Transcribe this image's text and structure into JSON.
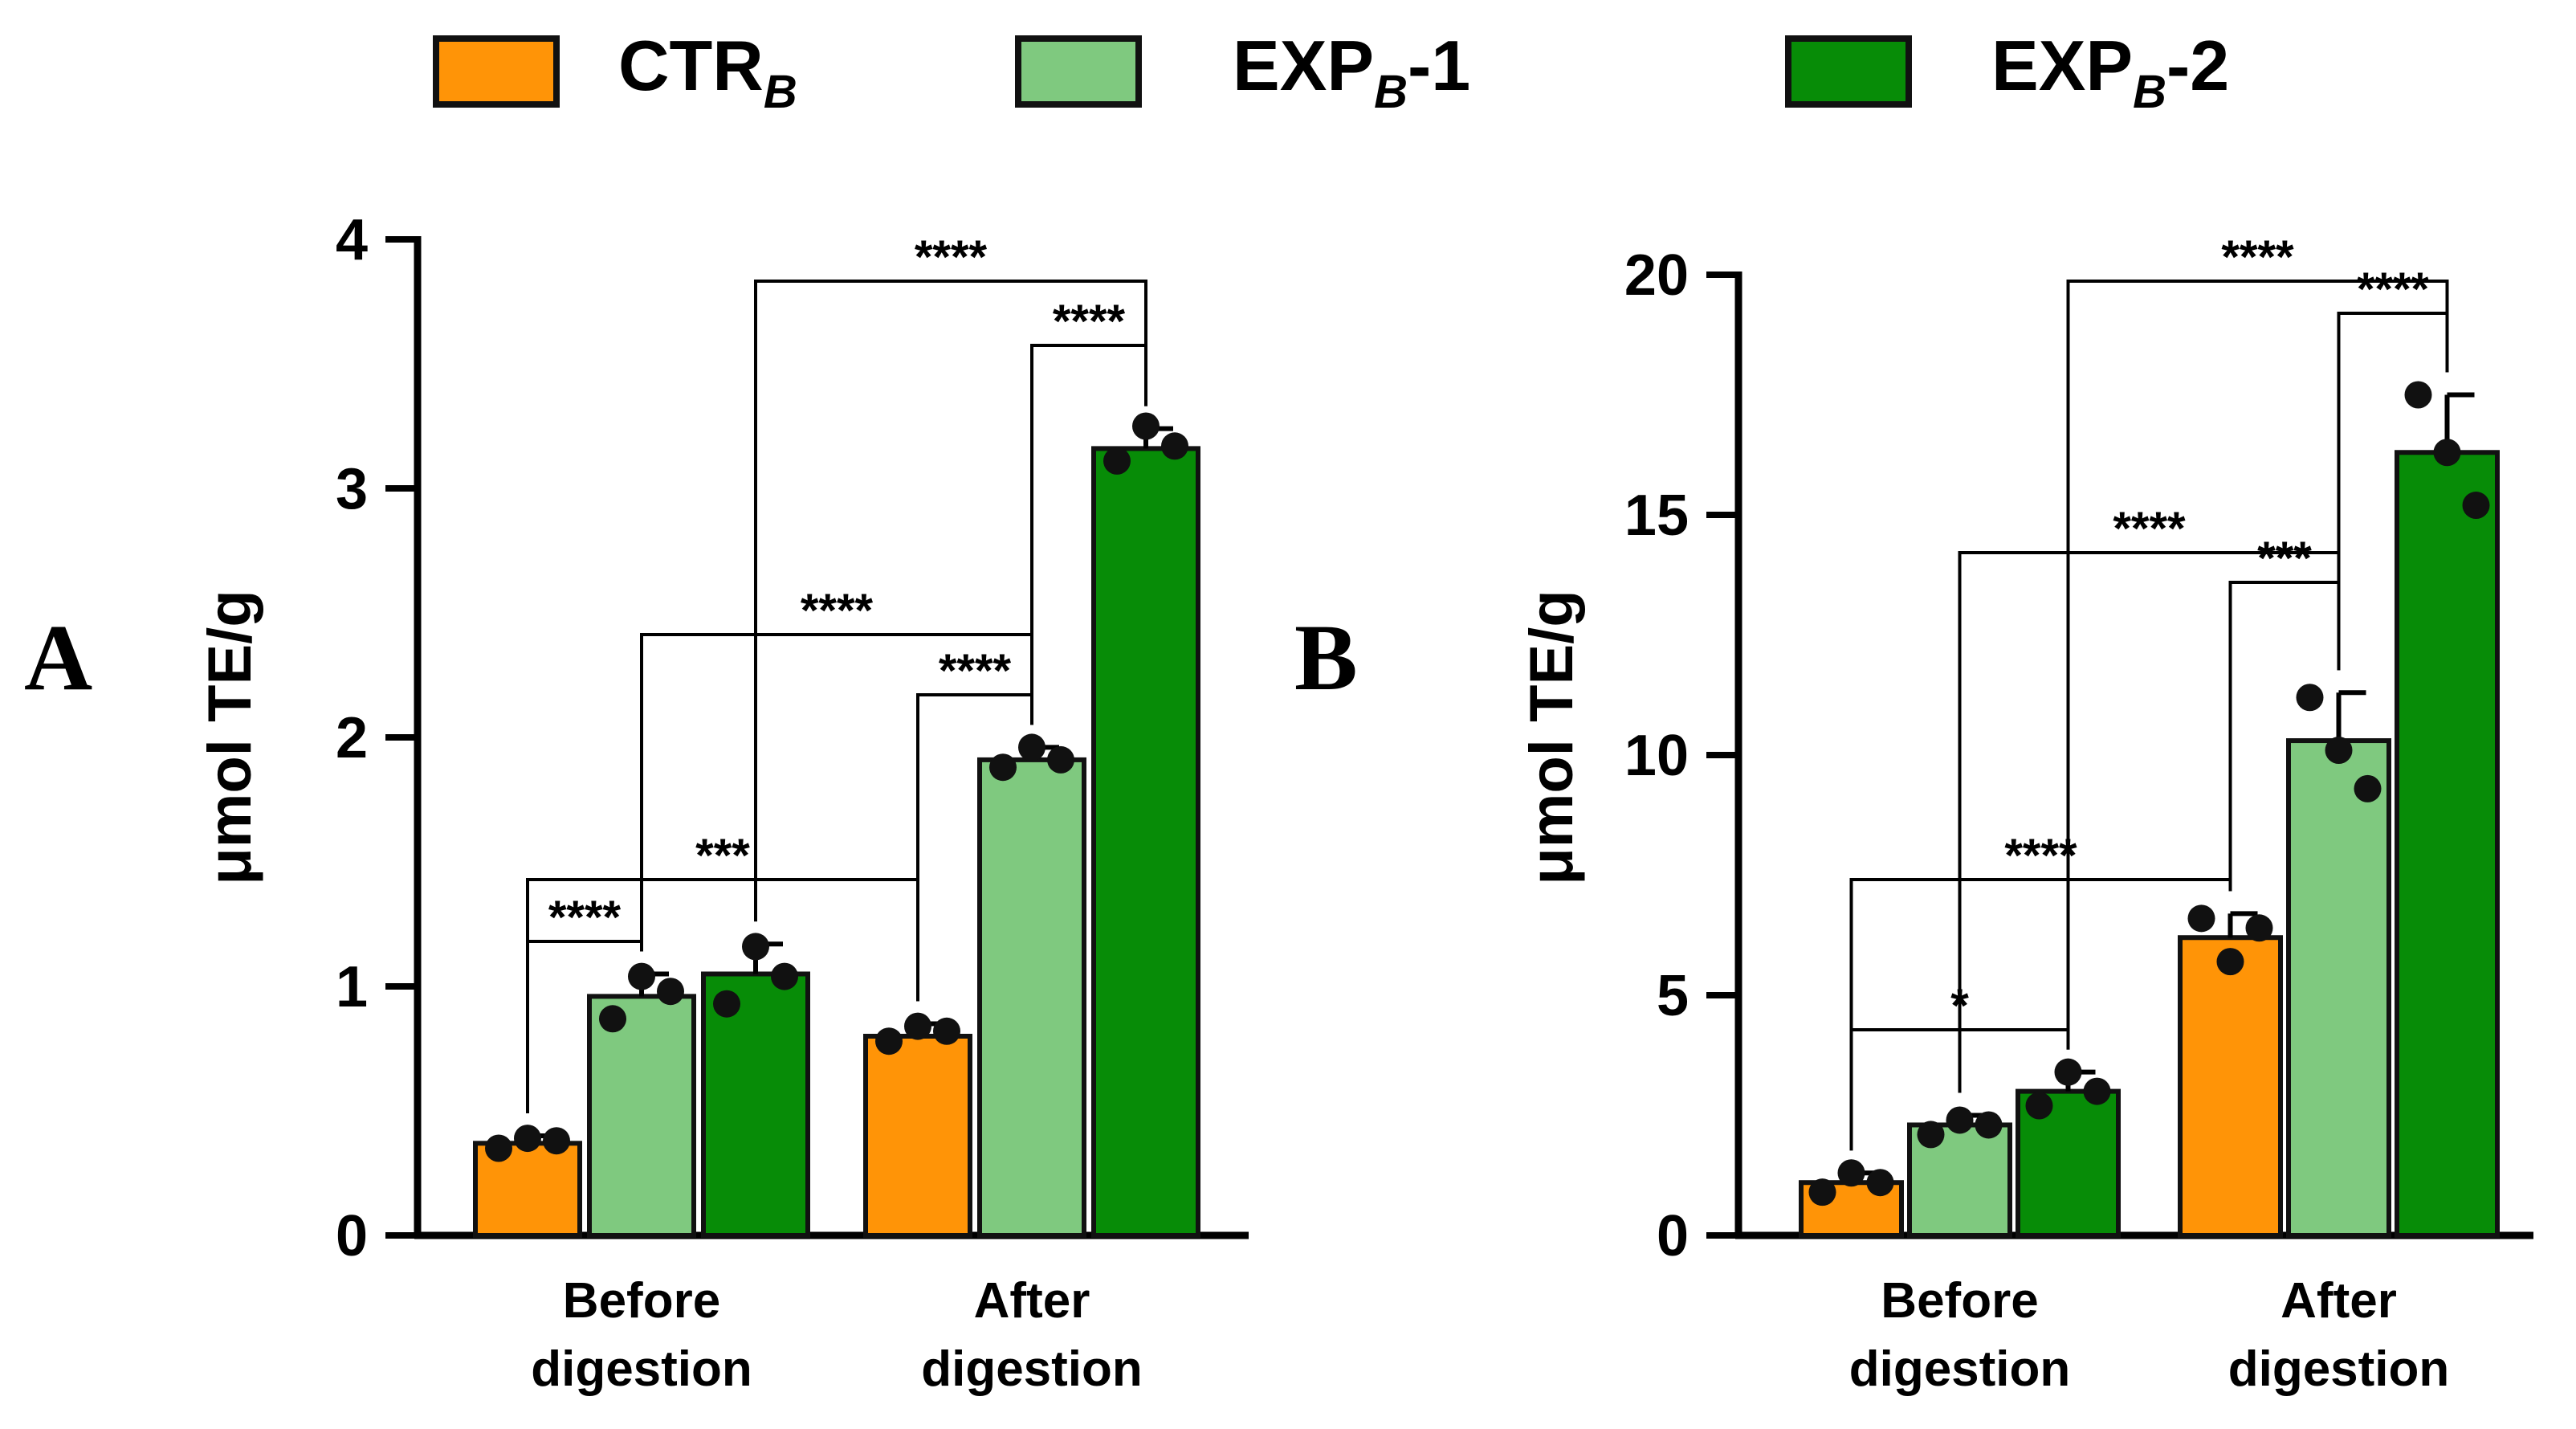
{
  "legend": [
    {
      "label": "CTR",
      "sub": "B",
      "suffix": "",
      "color": "#ff9407"
    },
    {
      "label": "EXP",
      "sub": "B",
      "suffix": "-1",
      "color": "#7fc97f"
    },
    {
      "label": "EXP",
      "sub": "B",
      "suffix": "-2",
      "color": "#078c07"
    }
  ],
  "chart_data": [
    {
      "type": "bar",
      "panel": "A",
      "ylabel": "μmol TE/g",
      "ylim": [
        0,
        4
      ],
      "yticks": [
        "0",
        "1",
        "2",
        "3",
        "4"
      ],
      "categories": [
        "Before digestion",
        "After digestion"
      ],
      "category_lines": [
        [
          "Before",
          "digestion"
        ],
        [
          "After",
          "digestion"
        ]
      ],
      "series": [
        {
          "name": "CTR_B",
          "values": [
            0.37,
            0.8
          ],
          "errors": [
            0.03,
            0.05
          ],
          "points": [
            [
              0.35,
              0.39,
              0.38
            ],
            [
              0.78,
              0.84,
              0.82
            ]
          ]
        },
        {
          "name": "EXP_B-1",
          "values": [
            0.96,
            1.91
          ],
          "errors": [
            0.09,
            0.05
          ],
          "points": [
            [
              0.87,
              1.04,
              0.98
            ],
            [
              1.88,
              1.96,
              1.91
            ]
          ]
        },
        {
          "name": "EXP_B-2",
          "values": [
            1.05,
            3.16
          ],
          "errors": [
            0.12,
            0.08
          ],
          "points": [
            [
              0.93,
              1.16,
              1.04
            ],
            [
              3.11,
              3.25,
              3.17
            ]
          ]
        }
      ],
      "significance": [
        {
          "label": "****",
          "from": [
            0,
            0
          ],
          "to": [
            0,
            1
          ]
        },
        {
          "label": "***",
          "from": [
            0,
            0
          ],
          "to": [
            1,
            0
          ]
        },
        {
          "label": "****",
          "from": [
            1,
            0
          ],
          "to": [
            1,
            1
          ]
        },
        {
          "label": "****",
          "from": [
            0,
            1
          ],
          "to": [
            1,
            1
          ]
        },
        {
          "label": "****",
          "from": [
            1,
            1
          ],
          "to": [
            1,
            2
          ]
        },
        {
          "label": "****",
          "from": [
            0,
            2
          ],
          "to": [
            1,
            2
          ]
        }
      ]
    },
    {
      "type": "bar",
      "panel": "B",
      "ylabel": "μmol TE/g",
      "ylim": [
        0,
        20
      ],
      "yticks": [
        "0",
        "5",
        "10",
        "15",
        "20"
      ],
      "categories": [
        "Before digestion",
        "After digestion"
      ],
      "category_lines": [
        [
          "Before",
          "digestion"
        ],
        [
          "After",
          "digestion"
        ]
      ],
      "series": [
        {
          "name": "CTR_B",
          "values": [
            1.1,
            6.2
          ],
          "errors": [
            0.2,
            0.5
          ],
          "points": [
            [
              0.9,
              1.3,
              1.1
            ],
            [
              6.6,
              5.7,
              6.4
            ]
          ]
        },
        {
          "name": "EXP_B-1",
          "values": [
            2.3,
            10.3
          ],
          "errors": [
            0.2,
            1.0
          ],
          "points": [
            [
              2.1,
              2.4,
              2.3
            ],
            [
              11.2,
              10.1,
              9.3
            ]
          ]
        },
        {
          "name": "EXP_B-2",
          "values": [
            3.0,
            16.3
          ],
          "errors": [
            0.4,
            1.2
          ],
          "points": [
            [
              2.7,
              3.4,
              3.0
            ],
            [
              17.5,
              16.3,
              15.2
            ]
          ]
        }
      ],
      "significance": [
        {
          "label": "*",
          "from": [
            0,
            0
          ],
          "to": [
            0,
            2
          ]
        },
        {
          "label": "****",
          "from": [
            0,
            0
          ],
          "to": [
            1,
            0
          ]
        },
        {
          "label": "****",
          "from": [
            0,
            1
          ],
          "to": [
            1,
            1
          ]
        },
        {
          "label": "***",
          "from": [
            1,
            0
          ],
          "to": [
            1,
            1
          ]
        },
        {
          "label": "****",
          "from": [
            1,
            1
          ],
          "to": [
            1,
            2
          ]
        },
        {
          "label": "****",
          "from": [
            0,
            2
          ],
          "to": [
            1,
            2
          ]
        }
      ]
    }
  ]
}
